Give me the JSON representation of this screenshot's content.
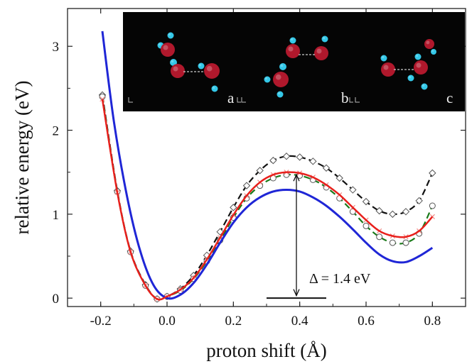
{
  "chart_data": {
    "type": "line",
    "title": "",
    "xlabel": "proton shift (Å)",
    "ylabel": "relative energy (eV)",
    "xlim": [
      -0.3,
      0.9
    ],
    "ylim": [
      -0.1,
      3.45
    ],
    "x_ticks": [
      -0.2,
      0.0,
      0.2,
      0.4,
      0.6,
      0.8
    ],
    "x_tick_labels": [
      "-0.2",
      "0.0",
      "0.2",
      "0.4",
      "0.6",
      "0.8"
    ],
    "y_ticks": [
      0,
      1,
      2,
      3
    ],
    "y_tick_labels": [
      "0",
      "1",
      "2",
      "3"
    ],
    "grid": false,
    "legend": "none",
    "series": [
      {
        "color": "#111111",
        "line_style": "dashed",
        "marker": "diamond",
        "x": [
          -0.195,
          -0.15,
          -0.11,
          -0.065,
          -0.03,
          0.0,
          0.04,
          0.08,
          0.12,
          0.16,
          0.2,
          0.24,
          0.28,
          0.32,
          0.36,
          0.4,
          0.44,
          0.48,
          0.52,
          0.56,
          0.6,
          0.64,
          0.68,
          0.72,
          0.76,
          0.8
        ],
        "y": [
          2.42,
          1.28,
          0.56,
          0.16,
          -0.01,
          0.02,
          0.11,
          0.27,
          0.51,
          0.79,
          1.08,
          1.34,
          1.52,
          1.64,
          1.69,
          1.68,
          1.63,
          1.55,
          1.43,
          1.29,
          1.15,
          1.04,
          1.0,
          1.03,
          1.16,
          1.49
        ]
      },
      {
        "color": "#1a7a1a",
        "line_style": "dashed",
        "marker": "circle",
        "x": [
          -0.195,
          -0.15,
          -0.11,
          -0.065,
          -0.03,
          0.0,
          0.04,
          0.08,
          0.12,
          0.16,
          0.2,
          0.24,
          0.28,
          0.32,
          0.36,
          0.4,
          0.44,
          0.48,
          0.52,
          0.56,
          0.6,
          0.64,
          0.68,
          0.72,
          0.76,
          0.8
        ],
        "y": [
          2.4,
          1.27,
          0.55,
          0.15,
          -0.01,
          0.02,
          0.09,
          0.23,
          0.44,
          0.69,
          0.96,
          1.19,
          1.34,
          1.43,
          1.47,
          1.46,
          1.41,
          1.32,
          1.19,
          1.03,
          0.86,
          0.73,
          0.66,
          0.66,
          0.77,
          1.1
        ]
      },
      {
        "color": "#e8201c",
        "line_style": "solid",
        "marker": "cross",
        "x": [
          -0.195,
          -0.15,
          -0.11,
          -0.065,
          -0.03,
          0.0,
          0.04,
          0.08,
          0.12,
          0.16,
          0.2,
          0.24,
          0.28,
          0.32,
          0.36,
          0.4,
          0.44,
          0.48,
          0.52,
          0.56,
          0.6,
          0.64,
          0.68,
          0.72,
          0.76,
          0.8
        ],
        "y": [
          2.37,
          1.26,
          0.55,
          0.15,
          -0.01,
          0.02,
          0.1,
          0.24,
          0.46,
          0.72,
          0.99,
          1.22,
          1.38,
          1.47,
          1.5,
          1.49,
          1.44,
          1.35,
          1.23,
          1.08,
          0.93,
          0.8,
          0.74,
          0.73,
          0.8,
          0.97
        ]
      },
      {
        "color": "#1f26d6",
        "line_style": "solid",
        "marker": "none",
        "x": [
          -0.195,
          -0.16,
          -0.12,
          -0.08,
          -0.04,
          0.0,
          0.04,
          0.08,
          0.12,
          0.16,
          0.2,
          0.24,
          0.28,
          0.32,
          0.36,
          0.4,
          0.44,
          0.48,
          0.52,
          0.56,
          0.6,
          0.64,
          0.68,
          0.72,
          0.76,
          0.8
        ],
        "y": [
          3.18,
          2.1,
          1.2,
          0.55,
          0.15,
          0.0,
          0.04,
          0.18,
          0.4,
          0.66,
          0.9,
          1.08,
          1.2,
          1.27,
          1.29,
          1.27,
          1.2,
          1.1,
          0.97,
          0.82,
          0.66,
          0.52,
          0.44,
          0.43,
          0.5,
          0.6
        ]
      }
    ],
    "annotations": {
      "delta_label": "Δ = 1.4 eV",
      "arrow_x": 0.39,
      "arrow_y_from": 0.03,
      "arrow_y_to": 1.47,
      "baseline_y": 0.0,
      "baseline_x": [
        0.3,
        0.48
      ]
    },
    "inset": {
      "panel_labels": [
        "a",
        "b",
        "c"
      ],
      "atom_colors": {
        "oxygen": "#b0182c",
        "hydrogen": "#34c8e8"
      },
      "background": "#050505"
    }
  }
}
